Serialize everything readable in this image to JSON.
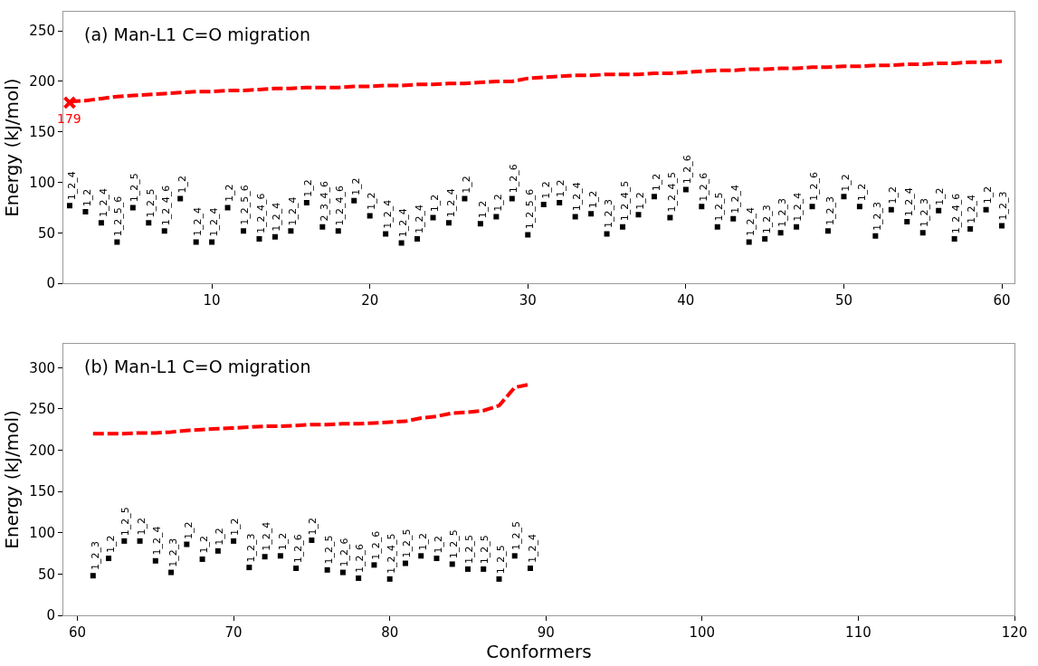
{
  "chart_data": [
    {
      "type": "line",
      "title": "(a) Man-L1 C=O migration",
      "ylabel": "Energy (kJ/mol)",
      "xlim": [
        0.6,
        60.8
      ],
      "xticks": [
        10,
        20,
        30,
        40,
        50,
        60
      ],
      "ylim": [
        0,
        269
      ],
      "yticks": [
        0,
        50,
        100,
        150,
        200,
        250
      ],
      "annotations": [
        {
          "text": "179",
          "x": 1,
          "y": 179
        }
      ],
      "series": [
        {
          "color": "#ff0000",
          "line_style": "dashed",
          "marker": "none",
          "x": [
            1,
            2,
            3,
            4,
            5,
            6,
            7,
            8,
            9,
            10,
            11,
            12,
            13,
            14,
            15,
            16,
            17,
            18,
            19,
            20,
            21,
            22,
            23,
            24,
            25,
            26,
            27,
            28,
            29,
            30,
            31,
            32,
            33,
            34,
            35,
            36,
            37,
            38,
            39,
            40,
            41,
            42,
            43,
            44,
            45,
            46,
            47,
            48,
            49,
            50,
            51,
            52,
            53,
            54,
            55,
            56,
            57,
            58,
            59,
            60
          ],
          "values": [
            180,
            181,
            183,
            185,
            186,
            187,
            188,
            189,
            190,
            190,
            191,
            191,
            192,
            193,
            193,
            194,
            194,
            194,
            195,
            195,
            196,
            196,
            197,
            197,
            198,
            198,
            199,
            200,
            200,
            203,
            204,
            205,
            206,
            206,
            207,
            207,
            207,
            208,
            208,
            209,
            210,
            211,
            211,
            212,
            212,
            213,
            213,
            214,
            214,
            215,
            215,
            216,
            216,
            217,
            217,
            218,
            218,
            219,
            219,
            220
          ]
        },
        {
          "type": "scatter",
          "color": "#ff0000",
          "marker": "cross",
          "x": [
            1
          ],
          "values": [
            179
          ]
        },
        {
          "type": "scatter",
          "color": "#000000",
          "marker": "square",
          "x": [
            1,
            2,
            3,
            4,
            5,
            6,
            7,
            8,
            9,
            10,
            11,
            12,
            13,
            14,
            15,
            16,
            17,
            18,
            19,
            20,
            21,
            22,
            23,
            24,
            25,
            26,
            27,
            28,
            29,
            30,
            31,
            32,
            33,
            34,
            35,
            36,
            37,
            38,
            39,
            40,
            41,
            42,
            43,
            44,
            45,
            46,
            47,
            48,
            49,
            50,
            51,
            52,
            53,
            54,
            55,
            56,
            57,
            58,
            59,
            60
          ],
          "values": [
            77,
            71,
            60,
            41,
            75,
            60,
            52,
            84,
            41,
            41,
            75,
            52,
            44,
            46,
            52,
            80,
            56,
            52,
            82,
            67,
            49,
            40,
            44,
            65,
            60,
            84,
            59,
            66,
            84,
            48,
            78,
            80,
            66,
            69,
            49,
            56,
            68,
            86,
            65,
            93,
            76,
            56,
            64,
            41,
            44,
            50,
            56,
            76,
            52,
            86,
            76,
            47,
            73,
            61,
            50,
            72,
            44,
            54,
            73,
            57
          ],
          "value_labels": [
            "1_2_4",
            "1_2",
            "1_2_4",
            "1_2_5_6",
            "1_2_5",
            "1_2_5",
            "1_2_4_6",
            "1_2",
            "1_2_4",
            "1_2_4",
            "1_2",
            "1_2_5_6",
            "1_2_4_6",
            "1_2_4",
            "1_2_4",
            "1_2",
            "2_3_4_6",
            "1_2_4_6",
            "1_2",
            "1_2",
            "1_2_4",
            "1_2_4",
            "1_2_4",
            "1_2",
            "1_2_4",
            "1_2",
            "1_2",
            "1_2",
            "1_2_6",
            "1_2_5_6",
            "1_2",
            "1_2",
            "1_2_4",
            "1_2",
            "1_2_3",
            "1_2_4_5",
            "1_2",
            "1_2",
            "1_2_4_5",
            "1_2_6",
            "1_2_6",
            "1_2_5",
            "1_2_4",
            "1_2_4",
            "1_2_3",
            "1_2_3",
            "1_2_4",
            "1_2_6",
            "1_2_3",
            "1_2",
            "1_2",
            "1_2_3",
            "1_2",
            "1_2_4",
            "1_2_3",
            "1_2",
            "1_2_4_6",
            "1_2_4",
            "1_2",
            "1_2_3"
          ]
        }
      ]
    },
    {
      "type": "line",
      "title": "(b) Man-L1 C=O migration",
      "xlabel": "Conformers",
      "ylabel": "Energy (kJ/mol)",
      "xlim": [
        59.1,
        120
      ],
      "xticks": [
        60,
        70,
        80,
        90,
        100,
        110,
        120
      ],
      "ylim": [
        0,
        329
      ],
      "yticks": [
        0,
        50,
        100,
        150,
        200,
        250,
        300
      ],
      "series": [
        {
          "color": "#ff0000",
          "line_style": "dashed",
          "marker": "none",
          "x": [
            61,
            62,
            63,
            64,
            65,
            66,
            67,
            68,
            69,
            70,
            71,
            72,
            73,
            74,
            75,
            76,
            77,
            78,
            79,
            80,
            81,
            82,
            83,
            84,
            85,
            86,
            87,
            88,
            89
          ],
          "values": [
            220,
            220,
            220,
            221,
            221,
            222,
            224,
            225,
            226,
            227,
            228,
            229,
            229,
            230,
            231,
            231,
            232,
            232,
            233,
            234,
            235,
            239,
            241,
            245,
            246,
            248,
            254,
            276,
            280
          ]
        },
        {
          "type": "scatter",
          "color": "#000000",
          "marker": "square",
          "x": [
            61,
            62,
            63,
            64,
            65,
            66,
            67,
            68,
            69,
            70,
            71,
            72,
            73,
            74,
            75,
            76,
            77,
            78,
            79,
            80,
            81,
            82,
            83,
            84,
            85,
            86,
            87,
            88,
            89
          ],
          "values": [
            48,
            69,
            90,
            90,
            66,
            52,
            86,
            68,
            78,
            90,
            58,
            71,
            72,
            57,
            91,
            55,
            52,
            45,
            61,
            44,
            63,
            72,
            69,
            62,
            56,
            56,
            44,
            72,
            57
          ],
          "value_labels": [
            "1_2_3",
            "1_2",
            "1_2_5",
            "1_2",
            "1_2_4",
            "1_2_3",
            "1_2",
            "1_2",
            "1_2",
            "1_2",
            "1_2_3",
            "1_2_4",
            "1_2",
            "1_2_6",
            "1_2",
            "1_2_5",
            "1_2_6",
            "1_2_6",
            "1_2_6",
            "1_2_4_5",
            "1_2_5",
            "1_2",
            "1_2",
            "1_2_5",
            "1_2_5",
            "1_2_5",
            "1_2_5",
            "1_2_5",
            "1_2_4"
          ]
        }
      ]
    }
  ]
}
